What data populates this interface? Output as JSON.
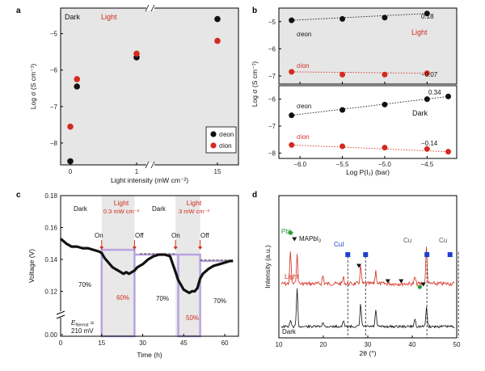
{
  "colors": {
    "red": "#d42a1f",
    "black": "#111111",
    "purple": "#b9a3e0",
    "grey": "#e6e6e6",
    "green": "#2a9a35",
    "blue": "#1c3fd0"
  },
  "panels": [
    {
      "letter": "a"
    },
    {
      "letter": "b"
    },
    {
      "letter": "c"
    },
    {
      "letter": "d"
    }
  ],
  "chart_data": [
    {
      "panel": "a",
      "type": "scatter",
      "xlabel": "Light intensity (mW cm⁻²)",
      "ylabel": "Log σ (S cm⁻¹)",
      "xticks": [
        "0",
        "1",
        "15"
      ],
      "yticks": [
        "-8",
        "-7",
        "-6",
        "-5"
      ],
      "ylim": [
        -8.6,
        -4.3
      ],
      "x_axis_break": true,
      "annotations": {
        "dark": "Dark",
        "light": "Light"
      },
      "legend": {
        "position": "bottom-right",
        "entries": [
          "σeon",
          "σion"
        ]
      },
      "series": [
        {
          "name": "σeon",
          "color": "#111111",
          "x": [
            0,
            0.1,
            1,
            15
          ],
          "y": [
            -8.5,
            -6.45,
            -5.65,
            -4.6
          ]
        },
        {
          "name": "σion",
          "color": "#d42a1f",
          "x": [
            0,
            0.1,
            1,
            15
          ],
          "y": [
            -7.55,
            -6.25,
            -5.55,
            -5.2
          ]
        }
      ]
    },
    {
      "panel": "b",
      "type": "scatter",
      "xlabel": "Log P(I₂) (bar)",
      "ylabel": "Log σ (S cm⁻¹)",
      "xlim": [
        -6.25,
        -4.15
      ],
      "xticks": [
        "-6.0",
        "-5.5",
        "-5.0",
        "-4.5"
      ],
      "subplots": [
        {
          "condition": "Light",
          "ylim": [
            -7.3,
            -4.5
          ],
          "yticks": [
            "-7",
            "-6",
            "-5"
          ],
          "series": [
            {
              "name": "σeon",
              "color": "#111111",
              "x": [
                -6.1,
                -5.5,
                -5.0,
                -4.5
              ],
              "y": [
                -4.95,
                -4.9,
                -4.85,
                -4.7
              ],
              "slope_label": "0.18"
            },
            {
              "name": "σion",
              "color": "#d42a1f",
              "x": [
                -6.1,
                -5.5,
                -5.0,
                -4.5
              ],
              "y": [
                -6.85,
                -6.95,
                -6.95,
                -6.9
              ],
              "slope_label": "−0.07"
            }
          ]
        },
        {
          "condition": "Dark",
          "ylim": [
            -8.2,
            -5.5
          ],
          "yticks": [
            "-8",
            "-7",
            "-6"
          ],
          "series": [
            {
              "name": "σeon",
              "color": "#111111",
              "x": [
                -6.1,
                -5.5,
                -5.0,
                -4.5,
                -4.25
              ],
              "y": [
                -6.6,
                -6.4,
                -6.2,
                -6.0,
                -5.9
              ],
              "slope_label": "0.34"
            },
            {
              "name": "σion",
              "color": "#d42a1f",
              "x": [
                -6.1,
                -5.5,
                -5.0,
                -4.5,
                -4.25
              ],
              "y": [
                -7.7,
                -7.75,
                -7.8,
                -7.85,
                -7.95
              ],
              "slope_label": "−0.14"
            }
          ]
        }
      ]
    },
    {
      "panel": "c",
      "type": "line",
      "xlabel": "Time (h)",
      "ylabel": "Voltage (V)",
      "xlim": [
        0,
        65
      ],
      "ylim": [
        0.105,
        0.18
      ],
      "xticks": [
        "0",
        "15",
        "30",
        "45",
        "60"
      ],
      "yticks": [
        "0.00",
        "0.12",
        "0.14",
        "0.16",
        "0.18"
      ],
      "y_axis_break": true,
      "annotations": {
        "dark": "Dark",
        "light1": "Light",
        "light1_intensity": "0.3 mW cm⁻²",
        "light2": "Light",
        "light2_intensity": "3 mW cm⁻²",
        "on": "On",
        "off": "Off",
        "p70a": "70%",
        "p60": "60%",
        "p70b": "70%",
        "p50": "50%",
        "p70c": "70%",
        "enernst_prefix": "E",
        "enernst_sub": "Nernst",
        "enernst_suffix": " =",
        "enernst_value": "210 mV"
      },
      "light_windows": [
        [
          15,
          27
        ],
        [
          42,
          51
        ]
      ],
      "series": [
        {
          "name": "",
          "color": "#111111",
          "x": [
            0,
            2,
            4,
            6,
            8,
            10,
            12,
            14,
            15,
            16,
            17,
            18,
            19,
            20,
            21,
            22,
            23,
            24,
            25,
            26,
            27,
            28,
            30,
            32,
            34,
            36,
            38,
            40,
            41,
            42,
            43,
            44,
            45,
            46,
            47,
            48,
            49,
            50,
            51,
            52,
            54,
            56,
            58,
            60,
            62,
            63
          ],
          "y": [
            0.153,
            0.15,
            0.148,
            0.148,
            0.147,
            0.147,
            0.146,
            0.145,
            0.144,
            0.141,
            0.139,
            0.137,
            0.135,
            0.134,
            0.133,
            0.132,
            0.131,
            0.132,
            0.131,
            0.132,
            0.133,
            0.135,
            0.137,
            0.14,
            0.142,
            0.143,
            0.143,
            0.142,
            0.137,
            0.132,
            0.127,
            0.124,
            0.121,
            0.12,
            0.119,
            0.12,
            0.12,
            0.122,
            0.128,
            0.131,
            0.134,
            0.136,
            0.137,
            0.138,
            0.139,
            0.139
          ]
        }
      ]
    },
    {
      "panel": "d",
      "type": "line",
      "xlabel": "2θ (°)",
      "ylabel": "Intensity (a.u.)",
      "xlim": [
        10,
        50
      ],
      "xticks": [
        "10",
        "20",
        "30",
        "40",
        "50"
      ],
      "labels": {
        "pbi2": "PbI",
        "pbi2_sub": "2",
        "mapbi3": "MAPbI",
        "mapbi3_sub": "3",
        "cui": "CuI",
        "cu1": "Cu",
        "cu2": "Cu",
        "light": "Light",
        "dark": "Dark"
      },
      "series": [
        {
          "name": "Light",
          "color": "#d42a1f"
        },
        {
          "name": "Dark",
          "color": "#111111"
        }
      ],
      "reference_lines_2theta": [
        25.5,
        29.5,
        43.3,
        50.4
      ]
    }
  ]
}
